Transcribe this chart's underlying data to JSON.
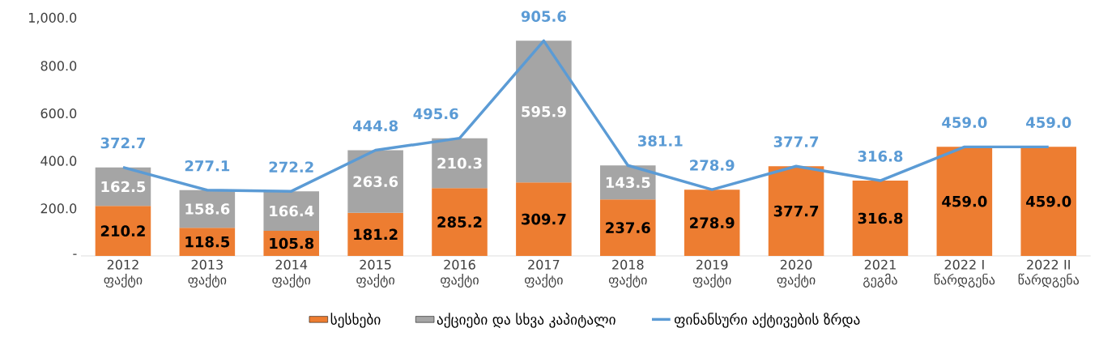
{
  "chart_data": {
    "type": "bar",
    "stacked": true,
    "categories": [
      "2012 ფაქტი",
      "2013 ფაქტი",
      "2014 ფაქტი",
      "2015 ფაქტი",
      "2016 ფაქტი",
      "2017 ფაქტი",
      "2018 ფაქტი",
      "2019 ფაქტი",
      "2020 ფაქტი",
      "2021 გეგმა",
      "2022 I წარდგენა",
      "2022 II წარდგენა"
    ],
    "series": [
      {
        "name": "სესხები",
        "color": "#ed7d31",
        "values": [
          210.2,
          118.5,
          105.8,
          181.2,
          285.2,
          309.7,
          237.6,
          278.9,
          377.7,
          316.8,
          459.0,
          459.0
        ],
        "value_labels": [
          "210.2",
          "118.5",
          "105.8",
          "181.2",
          "285.2",
          "309.7",
          "237.6",
          "278.9",
          "377.7",
          "316.8",
          "459.0",
          "459.0"
        ]
      },
      {
        "name": "აქციები და სხვა კაპიტალი",
        "color": "#a5a5a5",
        "values": [
          162.5,
          158.6,
          166.4,
          263.6,
          210.3,
          595.9,
          143.5,
          null,
          null,
          null,
          null,
          null
        ],
        "value_labels": [
          "162.5",
          "158.6",
          "166.4",
          "263.6",
          "210.3",
          "595.9",
          "143.5",
          null,
          null,
          null,
          null,
          null
        ]
      },
      {
        "name": "ფინანსური აქტივების ზრდა",
        "type": "line",
        "color": "#5b9bd5",
        "values": [
          372.7,
          277.1,
          272.2,
          444.8,
          495.6,
          905.6,
          381.1,
          278.9,
          377.7,
          316.8,
          459.0,
          459.0
        ],
        "value_labels": [
          "372.7",
          "277.1",
          "272.2",
          "444.8",
          "495.6",
          "905.6",
          "381.1",
          "278.9",
          "377.7",
          "316.8",
          "459.0",
          "459.0"
        ]
      }
    ],
    "ylim": [
      0,
      1000
    ],
    "yticks": [
      {
        "value": 0,
        "label": "-"
      },
      {
        "value": 200,
        "label": "200.0"
      },
      {
        "value": 400,
        "label": "400.0"
      },
      {
        "value": 600,
        "label": "600.0"
      },
      {
        "value": 800,
        "label": "800.0"
      },
      {
        "value": 1000,
        "label": "1,000.0"
      }
    ],
    "legend": "bottom"
  }
}
